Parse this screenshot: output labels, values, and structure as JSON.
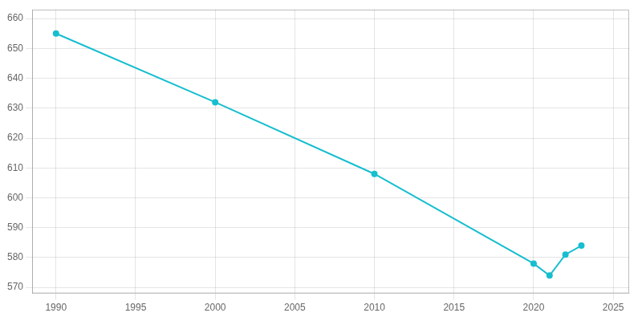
{
  "chart_data": {
    "type": "line",
    "x": [
      1990,
      2000,
      2010,
      2020,
      2021,
      2022,
      2023
    ],
    "values": [
      655,
      632,
      608,
      578,
      574,
      581,
      584
    ],
    "color": "#17BECF",
    "marker": "circle",
    "xlim": [
      1988.5,
      2026
    ],
    "ylim": [
      568,
      663
    ],
    "xticks": [
      1990,
      1995,
      2000,
      2005,
      2010,
      2015,
      2020,
      2025
    ],
    "yticks": [
      570,
      580,
      590,
      600,
      610,
      620,
      630,
      640,
      650,
      660
    ],
    "grid": true
  }
}
